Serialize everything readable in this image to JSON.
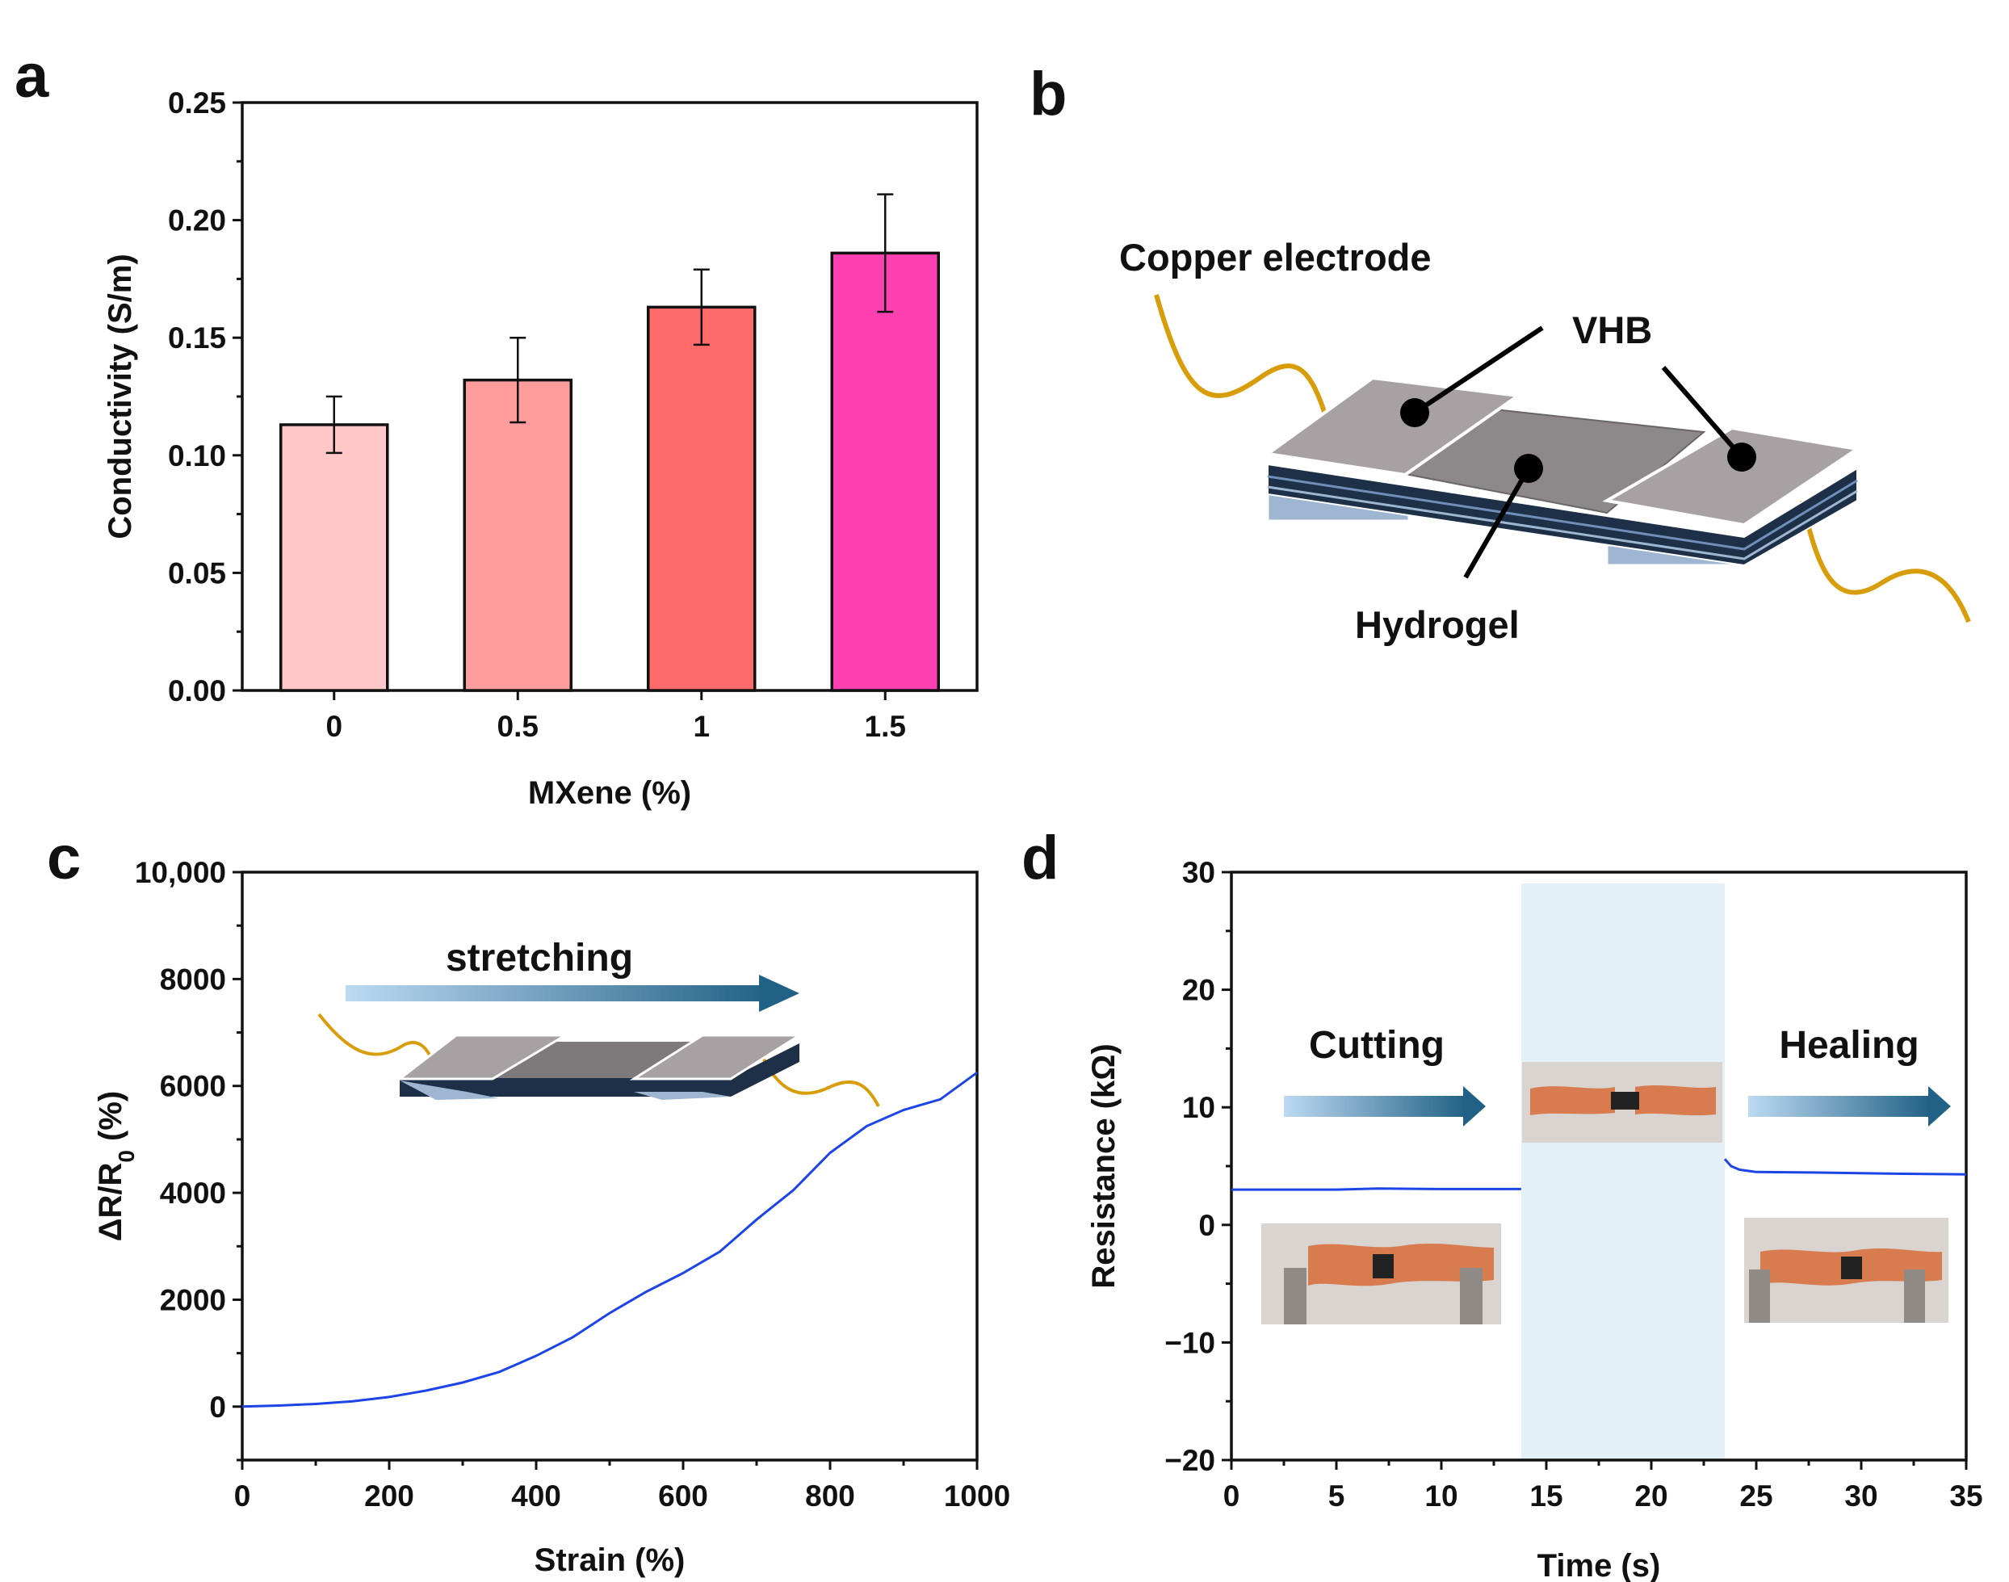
{
  "panels": {
    "a": "a",
    "b": "b",
    "c": "c",
    "d": "d"
  },
  "colors": {
    "bar_fill": [
      "#ffc7c7",
      "#ff9c9c",
      "#ff6a6a",
      "#ff40b0"
    ],
    "curve": "#1c44e6",
    "wire": "#d89d0a",
    "arrow_start": "#bcdaf2",
    "arrow_end": "#226186",
    "highlight": "#e4f0f8"
  },
  "chart_data": [
    {
      "panel": "a",
      "type": "bar",
      "title": "",
      "xlabel": "MXene (%)",
      "ylabel": "Conductivity (S/m)",
      "categories": [
        "0",
        "0.5",
        "1",
        "1.5"
      ],
      "values": [
        0.113,
        0.132,
        0.163,
        0.186
      ],
      "errors": [
        0.012,
        0.018,
        0.016,
        0.025
      ],
      "ylim": [
        0,
        0.25
      ],
      "yticks": [
        "0.00",
        "0.05",
        "0.10",
        "0.15",
        "0.20",
        "0.25"
      ]
    },
    {
      "panel": "c",
      "type": "line",
      "xlabel": "Strain (%)",
      "ylabel": "ΔR/R₀ (%)",
      "xlim": [
        0,
        1000
      ],
      "ylim": [
        -1000,
        10000
      ],
      "xticks": [
        "0",
        "200",
        "400",
        "600",
        "800",
        "1000"
      ],
      "yticks": [
        "0",
        "2000",
        "4000",
        "6000",
        "8000",
        "10,000"
      ],
      "annotation": "stretching",
      "x": [
        0,
        50,
        100,
        150,
        200,
        250,
        300,
        350,
        400,
        450,
        500,
        550,
        600,
        650,
        700,
        750,
        800,
        850,
        900,
        950,
        1000
      ],
      "y": [
        0,
        20,
        50,
        100,
        180,
        300,
        450,
        650,
        950,
        1300,
        1750,
        2150,
        2500,
        2900,
        3500,
        4050,
        4750,
        5250,
        5550,
        5750,
        6250
      ]
    },
    {
      "panel": "d",
      "type": "line",
      "xlabel": "Time (s)",
      "ylabel": "Resistance (kΩ)",
      "xlim": [
        0,
        35
      ],
      "ylim": [
        -20,
        30
      ],
      "xticks": [
        "0",
        "5",
        "10",
        "15",
        "20",
        "25",
        "30",
        "35"
      ],
      "yticks": [
        "30",
        "20",
        "10",
        "0",
        "−10",
        "−20"
      ],
      "annotations": [
        "Cutting",
        "Healing"
      ],
      "shaded_interval": [
        13.8,
        23.5
      ],
      "segments": [
        {
          "x": [
            0,
            5,
            7,
            10,
            13.8
          ],
          "y": [
            3.0,
            3.0,
            3.1,
            3.05,
            3.05
          ]
        },
        {
          "x": [
            23.5,
            23.8,
            24.2,
            25,
            28,
            32,
            35
          ],
          "y": [
            5.6,
            5.0,
            4.7,
            4.5,
            4.45,
            4.35,
            4.3
          ]
        }
      ]
    }
  ],
  "diagram_b": {
    "copper_label": "Copper electrode",
    "vhb_label": "VHB",
    "hydrogel_label": "Hydrogel"
  }
}
